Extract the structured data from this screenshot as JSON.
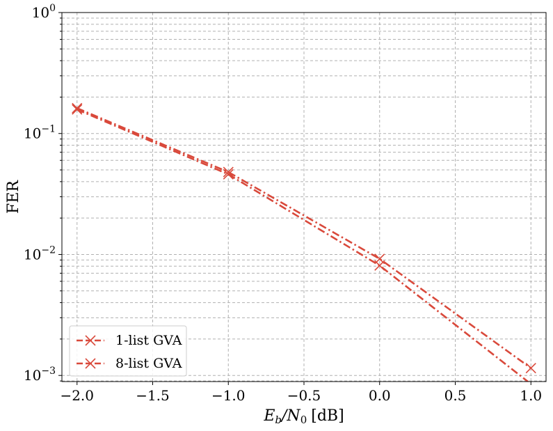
{
  "chart_data": {
    "type": "line",
    "x_scale": "linear",
    "y_scale": "log",
    "xlabel_main": "E",
    "xlabel_sub1": "b",
    "xlabel_mid": "/N",
    "xlabel_sub2": "0",
    "xlabel_unit": "[dB]",
    "ylabel": "FER",
    "xlim": [
      -2.1,
      1.1
    ],
    "ylim": [
      0.00089,
      1
    ],
    "grid": true,
    "legend_position": "lower-left",
    "x_ticks": [
      {
        "value": -2.0,
        "label": "−2.0"
      },
      {
        "value": -1.5,
        "label": "−1.5"
      },
      {
        "value": -1.0,
        "label": "−1.0"
      },
      {
        "value": -0.5,
        "label": "−0.5"
      },
      {
        "value": 0.0,
        "label": "0.0"
      },
      {
        "value": 0.5,
        "label": "0.5"
      },
      {
        "value": 1.0,
        "label": "1.0"
      }
    ],
    "y_ticks": [
      {
        "value": 1,
        "base": "10",
        "exp": "0"
      },
      {
        "value": 0.1,
        "base": "10",
        "exp": "−1"
      },
      {
        "value": 0.01,
        "base": "10",
        "exp": "−2"
      },
      {
        "value": 0.001,
        "base": "10",
        "exp": "−3"
      }
    ],
    "series": [
      {
        "name": "1-list GVA",
        "color": "#d9493b",
        "line_style": "dash-dot",
        "marker": "x",
        "x": [
          -2.0,
          -1.0,
          0.0,
          1.0
        ],
        "y": [
          0.162,
          0.048,
          0.0092,
          0.00115
        ]
      },
      {
        "name": "8-list GVA",
        "color": "#d9493b",
        "line_style": "dash-dot",
        "marker": "x",
        "x": [
          -2.0,
          -1.0,
          0.0,
          1.0
        ],
        "y": [
          0.158,
          0.046,
          0.0081,
          0.00085
        ]
      }
    ]
  }
}
